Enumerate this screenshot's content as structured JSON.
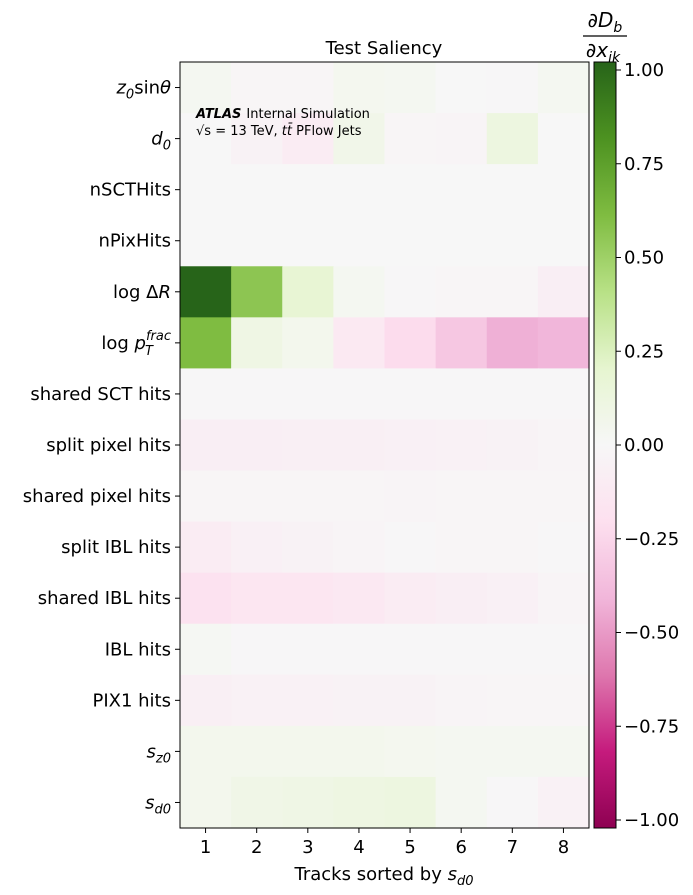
{
  "chart_data": {
    "type": "heatmap",
    "title": "Test Saliency",
    "xlabel": "Tracks sorted by s_d0",
    "xlabel_parts": {
      "main": "Tracks sorted by ",
      "var": "s",
      "sub": "d0"
    },
    "x_categories": [
      "1",
      "2",
      "3",
      "4",
      "5",
      "6",
      "7",
      "8"
    ],
    "y_categories": [
      {
        "plain": "z0sinθ",
        "main": "z",
        "sub": "0",
        "tail": "sinθ"
      },
      {
        "plain": "d0",
        "main": "d",
        "sub": "0",
        "tail": ""
      },
      {
        "plain": "nSCTHits",
        "main": "nSCTHits",
        "sub": "",
        "tail": ""
      },
      {
        "plain": "nPixHits",
        "main": "nPixHits",
        "sub": "",
        "tail": ""
      },
      {
        "plain": "log ΔR",
        "main": "log Δ",
        "sub": "",
        "tail": "",
        "ital": "R"
      },
      {
        "plain": "log pT^frac",
        "main": "log p",
        "sub": "T",
        "sup": "frac",
        "tail": ""
      },
      {
        "plain": "shared SCT hits",
        "main": "shared SCT hits",
        "sub": "",
        "tail": ""
      },
      {
        "plain": "split pixel hits",
        "main": "split pixel hits",
        "sub": "",
        "tail": ""
      },
      {
        "plain": "shared pixel hits",
        "main": "shared pixel hits",
        "sub": "",
        "tail": ""
      },
      {
        "plain": "split IBL hits",
        "main": "split IBL hits",
        "sub": "",
        "tail": ""
      },
      {
        "plain": "shared IBL hits",
        "main": "shared IBL hits",
        "sub": "",
        "tail": ""
      },
      {
        "plain": "IBL hits",
        "main": "IBL hits",
        "sub": "",
        "tail": ""
      },
      {
        "plain": "PIX1 hits",
        "main": "PIX1 hits",
        "sub": "",
        "tail": ""
      },
      {
        "plain": "s_z0",
        "main": "s",
        "sub": "z0",
        "tail": ""
      },
      {
        "plain": "s_d0",
        "main": "s",
        "sub": "d0",
        "tail": ""
      }
    ],
    "values": [
      [
        0.03,
        -0.02,
        -0.02,
        0.04,
        0.03,
        0.0,
        -0.01,
        0.03
      ],
      [
        0.0,
        -0.04,
        -0.1,
        0.07,
        -0.02,
        -0.03,
        0.12,
        0.0
      ],
      [
        0.0,
        0.0,
        0.0,
        0.0,
        0.0,
        0.0,
        0.0,
        0.0
      ],
      [
        0.0,
        0.0,
        0.0,
        0.0,
        0.0,
        0.0,
        0.0,
        0.0
      ],
      [
        1.0,
        0.55,
        0.18,
        0.03,
        -0.01,
        -0.02,
        -0.02,
        -0.08
      ],
      [
        0.6,
        0.1,
        0.05,
        -0.12,
        -0.22,
        -0.32,
        -0.42,
        -0.4
      ],
      [
        -0.01,
        -0.01,
        -0.01,
        -0.01,
        -0.01,
        -0.01,
        -0.01,
        -0.01
      ],
      [
        -0.08,
        -0.08,
        -0.07,
        -0.07,
        -0.06,
        -0.05,
        -0.04,
        -0.03
      ],
      [
        -0.02,
        -0.02,
        -0.02,
        -0.02,
        -0.03,
        -0.02,
        -0.02,
        -0.02
      ],
      [
        -0.1,
        -0.06,
        -0.04,
        -0.03,
        -0.01,
        -0.02,
        -0.02,
        -0.01
      ],
      [
        -0.18,
        -0.15,
        -0.15,
        -0.13,
        -0.1,
        -0.08,
        -0.06,
        -0.03
      ],
      [
        0.02,
        -0.01,
        -0.01,
        -0.01,
        -0.01,
        -0.01,
        -0.01,
        -0.01
      ],
      [
        -0.07,
        -0.05,
        -0.05,
        -0.04,
        -0.04,
        -0.03,
        -0.02,
        -0.02
      ],
      [
        0.05,
        0.05,
        0.05,
        0.05,
        0.04,
        0.03,
        0.03,
        0.03
      ],
      [
        0.05,
        0.08,
        0.09,
        0.11,
        0.12,
        0.03,
        -0.01,
        -0.05
      ]
    ],
    "zlim": [
      -1.0,
      1.0
    ],
    "colormap": "PiYG",
    "colorbar": {
      "label": "∂D_b/∂x_ik",
      "label_num": {
        "main": "∂D",
        "sub": "b"
      },
      "label_den": {
        "main": "∂x",
        "sub": "ik"
      },
      "ticks": [
        1.0,
        0.75,
        0.5,
        0.25,
        0.0,
        -0.25,
        -0.5,
        -0.75,
        -1.0
      ],
      "tick_labels": [
        "1.00",
        "0.75",
        "0.50",
        "0.25",
        "0.00",
        "−0.25",
        "−0.50",
        "−0.75",
        "−1.00"
      ]
    },
    "annotation": {
      "brand": "ATLAS",
      "line1": "Internal Simulation",
      "line2": "s = 13 TeV, tt PFlow Jets",
      "line2_sqrt": "√s",
      "line2_a": " = 13 TeV, ",
      "line2_tt": "t",
      "line2_tbar": "t̄",
      "line2_b": " PFlow Jets"
    },
    "grid": false,
    "colors": {
      "neg_end": "#8e0152",
      "pos_end": "#276419",
      "mid": "#f7f7f7"
    }
  }
}
